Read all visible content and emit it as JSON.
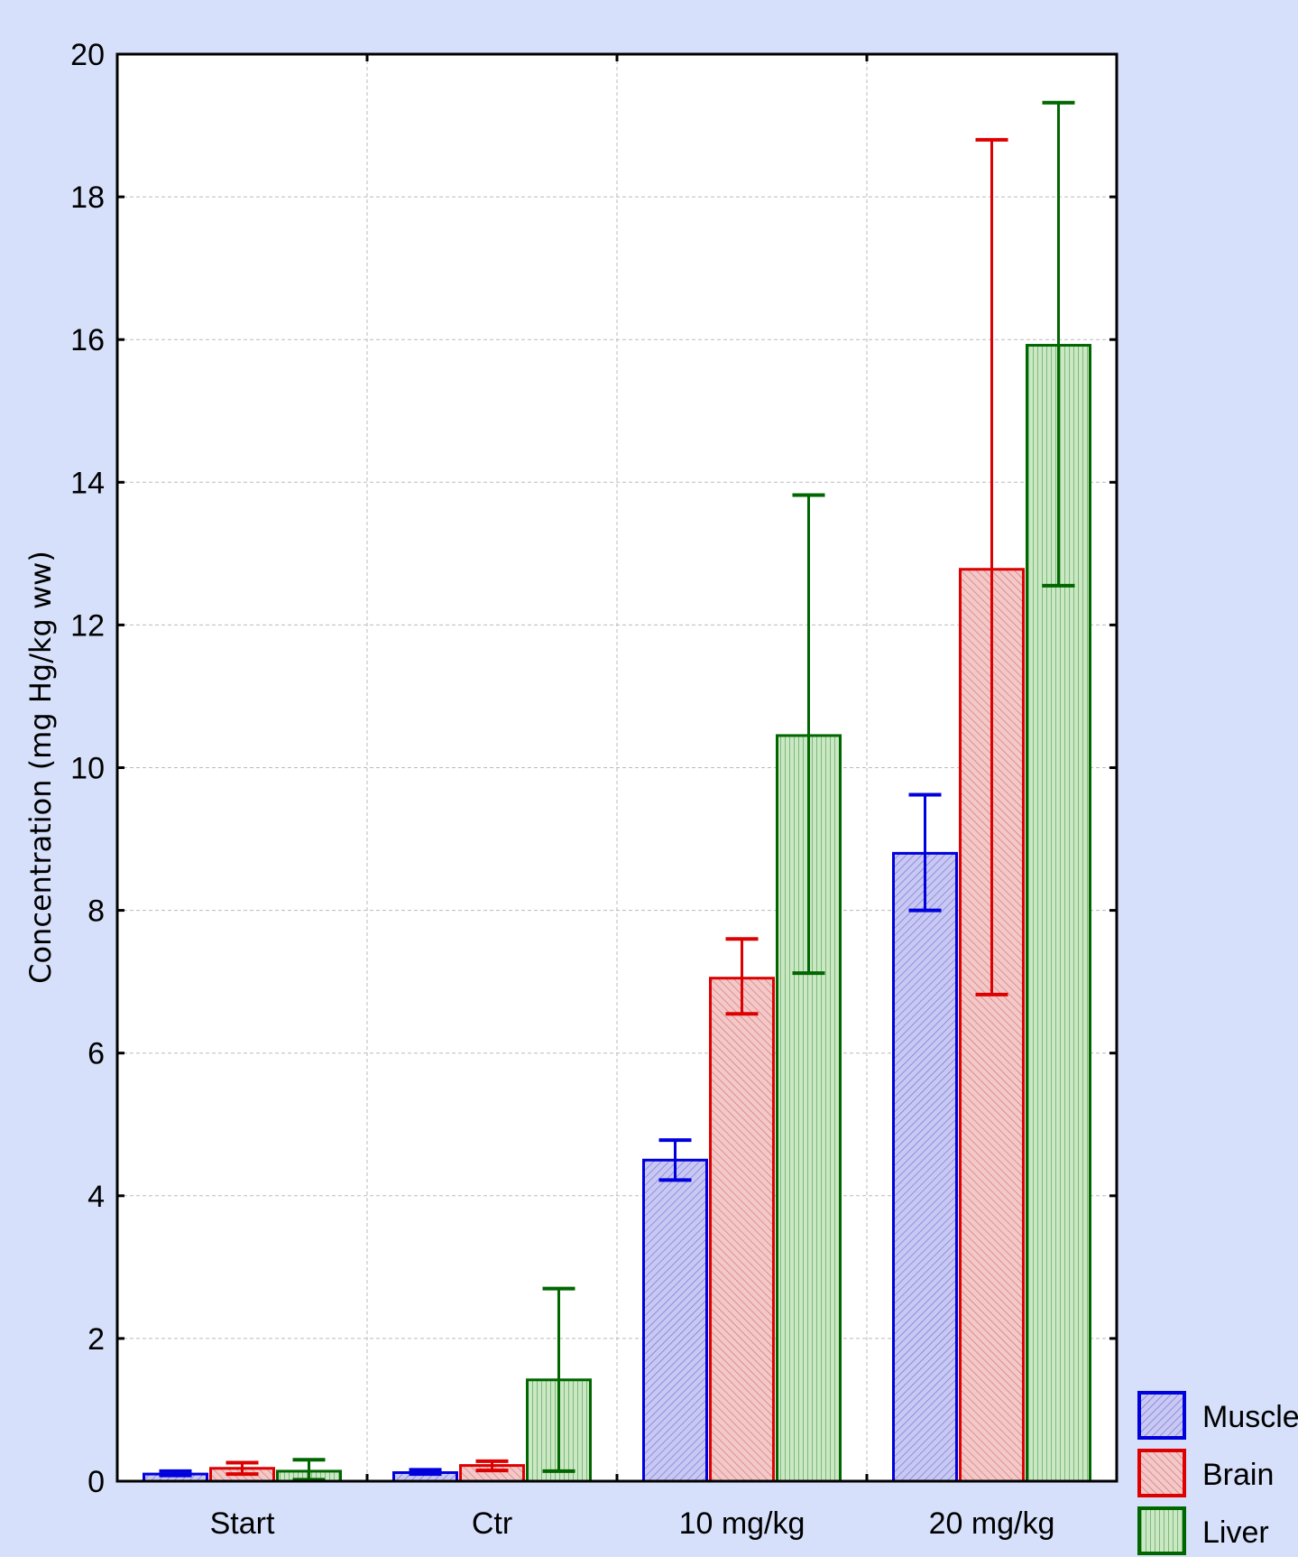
{
  "chart_data": {
    "type": "bar",
    "title": "",
    "xlabel": "",
    "ylabel": "Concentration (mg Hg/kg ww)",
    "categories": [
      "Start",
      "Ctr",
      "10 mg/kg",
      "20 mg/kg"
    ],
    "ylim": [
      0,
      20
    ],
    "yticks": [
      0,
      2,
      4,
      6,
      8,
      10,
      12,
      14,
      16,
      18,
      20
    ],
    "grid": true,
    "legend_position": "bottom-right",
    "series": [
      {
        "name": "Muscle",
        "color": "#0000dd",
        "fill": "#c8c8f2",
        "values": [
          0.1,
          0.12,
          4.5,
          8.8
        ],
        "error_low": [
          0.08,
          0.1,
          4.22,
          8.0
        ],
        "error_high": [
          0.14,
          0.16,
          4.78,
          9.62
        ]
      },
      {
        "name": "Brain",
        "color": "#dd0000",
        "fill": "#f2c8c8",
        "values": [
          0.18,
          0.22,
          7.05,
          12.78
        ],
        "error_low": [
          0.1,
          0.15,
          6.55,
          6.82
        ],
        "error_high": [
          0.26,
          0.28,
          7.6,
          18.8
        ]
      },
      {
        "name": "Liver",
        "color": "#006600",
        "fill": "#cbe8c4",
        "values": [
          0.14,
          1.42,
          10.45,
          15.92
        ],
        "error_low": [
          0.02,
          0.14,
          7.12,
          12.55
        ],
        "error_high": [
          0.3,
          2.7,
          13.82,
          19.32
        ]
      }
    ]
  }
}
